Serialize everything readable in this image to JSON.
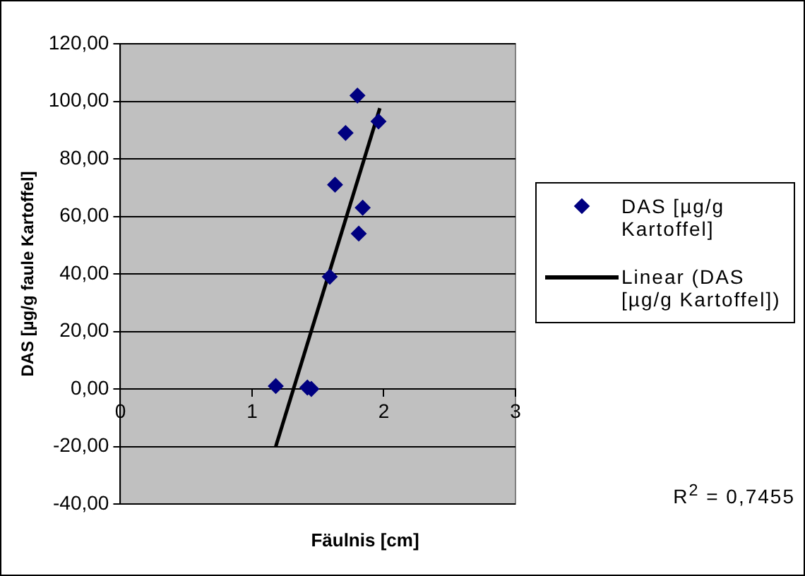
{
  "chart_data": {
    "type": "scatter",
    "xlabel": "Fäulnis [cm]",
    "ylabel": "DAS [µg/g faule Kartoffel]",
    "xlim": [
      0,
      3
    ],
    "xticks": [
      0,
      1,
      2,
      3
    ],
    "ylim": [
      -40,
      120
    ],
    "yticks": [
      {
        "value": -40,
        "label": "-40,00"
      },
      {
        "value": -20,
        "label": "-20,00"
      },
      {
        "value": 0,
        "label": "0,00"
      },
      {
        "value": 20,
        "label": "20,00"
      },
      {
        "value": 40,
        "label": "40,00"
      },
      {
        "value": 60,
        "label": "60,00"
      },
      {
        "value": 80,
        "label": "80,00"
      },
      {
        "value": 100,
        "label": "100,00"
      },
      {
        "value": 120,
        "label": "120,00"
      }
    ],
    "grid": "y",
    "legend": "right",
    "marker": "diamond",
    "series": [
      {
        "name": "DAS [µg/g Kartoffel]",
        "color": "#000080",
        "x": [
          1.8,
          1.96,
          1.71,
          1.63,
          1.84,
          1.81,
          1.59,
          1.18,
          1.42,
          1.45
        ],
        "values": [
          102,
          93,
          89,
          71,
          63,
          54,
          39,
          1,
          0.5,
          0
        ]
      },
      {
        "type": "line",
        "name": "Linear (DAS [µg/g Kartoffel])",
        "color": "#000000",
        "marker": "none",
        "line_style": "solid",
        "x": [
          1.18,
          1.97
        ],
        "values": [
          -20,
          97.6
        ]
      }
    ],
    "annotations": [
      "R$^{2}$ = 0,7455"
    ]
  }
}
